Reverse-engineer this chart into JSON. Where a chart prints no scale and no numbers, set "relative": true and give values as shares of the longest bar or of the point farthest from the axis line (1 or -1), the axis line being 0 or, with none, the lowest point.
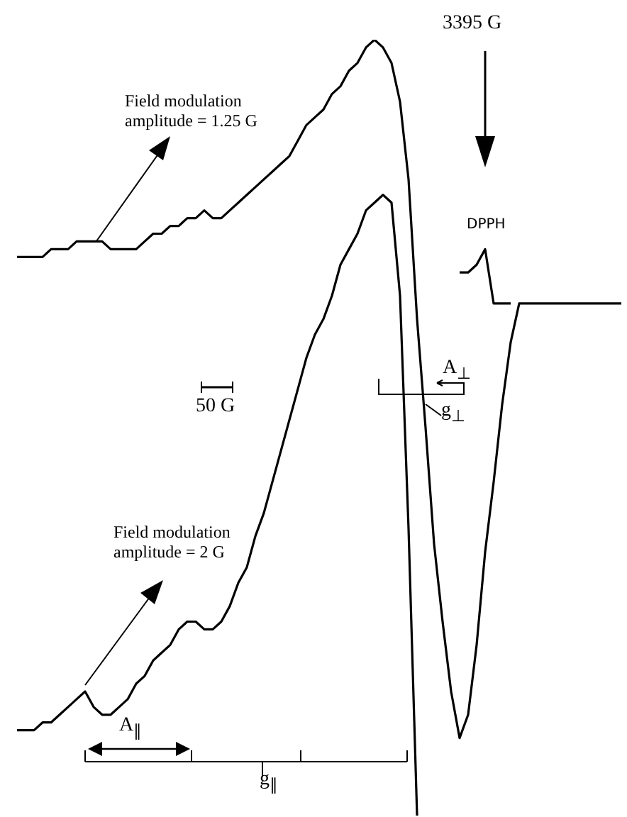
{
  "chart_data": {
    "type": "line",
    "relative": true,
    "line_style": "solid",
    "categories": [
      null,
      null,
      null,
      null,
      null,
      null,
      null,
      null,
      null,
      null,
      null,
      null,
      null,
      null,
      null,
      null,
      null,
      null,
      null,
      null,
      null,
      null,
      null,
      null,
      null,
      null,
      null,
      null,
      null,
      null,
      null,
      null,
      null,
      null,
      null,
      null,
      null,
      null,
      null,
      null,
      null,
      null,
      null,
      null,
      null,
      null,
      null,
      null,
      null,
      null,
      null,
      null,
      null,
      null,
      null,
      null,
      null,
      null,
      null,
      null,
      null,
      null,
      null,
      null,
      null,
      null,
      null,
      null,
      null,
      null,
      null,
      null
    ],
    "series": [
      {
        "color": "#000000",
        "values": [
          0.72,
          0.72,
          0.72,
          0.72,
          0.73,
          0.73,
          0.73,
          0.74,
          0.74,
          0.74,
          0.74,
          0.73,
          0.73,
          0.73,
          0.73,
          0.74,
          0.75,
          0.75,
          0.76,
          0.76,
          0.77,
          0.77,
          0.78,
          0.77,
          0.77,
          0.78,
          0.79,
          0.8,
          0.81,
          0.82,
          0.83,
          0.84,
          0.85,
          0.87,
          0.89,
          0.9,
          0.91,
          0.93,
          0.94,
          0.96,
          0.97,
          0.99,
          1,
          0.99,
          0.97,
          0.92,
          0.82,
          0.64,
          0.5,
          0.35,
          0.25,
          0.16,
          0.1,
          0.13,
          0.22,
          0.34,
          0.43,
          0.53,
          0.61,
          0.66,
          0.66,
          0.66,
          0.66,
          0.66,
          0.66,
          0.66,
          0.66,
          0.66,
          0.66,
          0.66,
          0.66,
          0.66
        ]
      },
      {
        "color": "#000000",
        "values": [
          0.11,
          0.11,
          0.11,
          0.12,
          0.12,
          0.13,
          0.14,
          0.15,
          0.16,
          0.14,
          0.13,
          0.13,
          0.14,
          0.15,
          0.17,
          0.18,
          0.2,
          0.21,
          0.22,
          0.24,
          0.25,
          0.25,
          0.24,
          0.24,
          0.25,
          0.27,
          0.3,
          0.32,
          0.36,
          0.39,
          0.43,
          0.47,
          0.51,
          0.55,
          0.59,
          0.62,
          0.64,
          0.67,
          0.71,
          0.73,
          0.75,
          0.78,
          0.79,
          0.8,
          0.79,
          0.67,
          0.37,
          0,
          null,
          null,
          null,
          null,
          null,
          null,
          null,
          null,
          null,
          null,
          null,
          null,
          null,
          null,
          null,
          null,
          null,
          null,
          null,
          null,
          null,
          null,
          null,
          null
        ]
      },
      {
        "color": "#000000",
        "values": [
          null,
          null,
          null,
          null,
          null,
          null,
          null,
          null,
          null,
          null,
          null,
          null,
          null,
          null,
          null,
          null,
          null,
          null,
          null,
          null,
          null,
          null,
          null,
          null,
          null,
          null,
          null,
          null,
          null,
          null,
          null,
          null,
          null,
          null,
          null,
          null,
          null,
          null,
          null,
          null,
          null,
          null,
          null,
          null,
          null,
          null,
          null,
          null,
          null,
          null,
          null,
          null,
          0.7,
          0.7,
          0.71,
          0.73,
          0.66,
          0.66,
          0.66,
          null,
          null,
          null,
          null,
          null,
          null,
          null,
          null,
          null,
          null,
          null,
          null,
          null
        ]
      }
    ],
    "annotations": [
      "3395 G",
      "Field modulation amplitude = 1.25 G",
      "DPPH",
      "50 G",
      "A$_{⊥}$",
      "g$_{⊥}$",
      "Field modulation amplitude = 2 G",
      "A$_{∥}$",
      "g$_{∥}$"
    ]
  }
}
